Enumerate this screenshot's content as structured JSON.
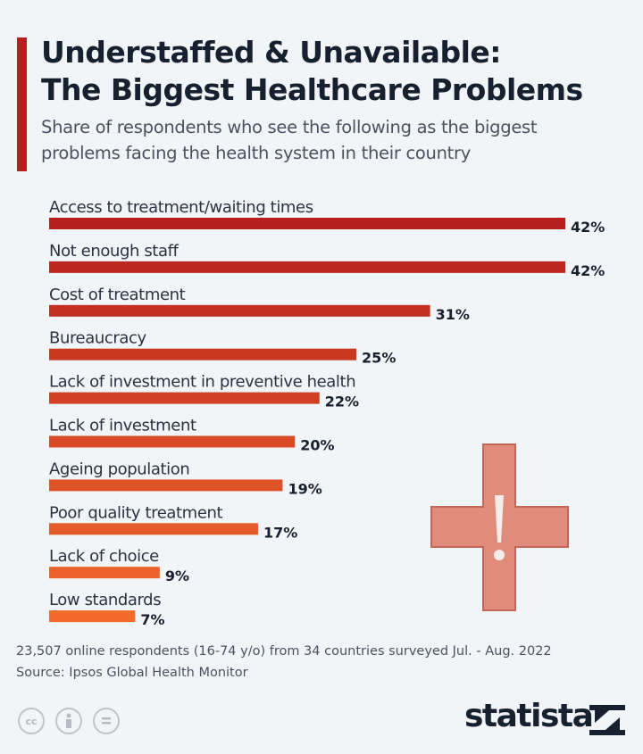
{
  "title_line1": "Understaffed & Unavailable:",
  "title_line2": "The Biggest Healthcare Problems",
  "subtitle_line1": "Share of respondents who see the following as the biggest",
  "subtitle_line2": "problems facing the health system in their country",
  "chart_data": {
    "type": "bar",
    "orientation": "horizontal",
    "categories": [
      "Access to treatment/waiting times",
      "Not enough staff",
      "Cost of treatment",
      "Bureaucracy",
      "Lack of investment in preventive health",
      "Lack of investment",
      "Ageing population",
      "Poor quality treatment",
      "Lack of choice",
      "Low standards"
    ],
    "values": [
      42,
      42,
      31,
      25,
      22,
      20,
      19,
      17,
      9,
      7
    ],
    "value_labels": [
      "42%",
      "42%",
      "31%",
      "25%",
      "22%",
      "20%",
      "19%",
      "17%",
      "9%",
      "7%"
    ],
    "unit": "%",
    "xlim": [
      0,
      42
    ],
    "grid": false,
    "colors": {
      "start": "#b5201e",
      "end": "#f26b2b"
    }
  },
  "footnote": "23,507 online respondents (16-74 y/o) from 34 countries surveyed Jul. - Aug. 2022",
  "source": "Source: Ipsos Global Health Monitor",
  "license_icons": [
    "cc-icon",
    "attribution-icon",
    "no-derivatives-icon"
  ],
  "license_text": [
    "cc",
    "",
    ""
  ],
  "brand": "statista",
  "illustration": "medical-cross-exclamation-icon"
}
